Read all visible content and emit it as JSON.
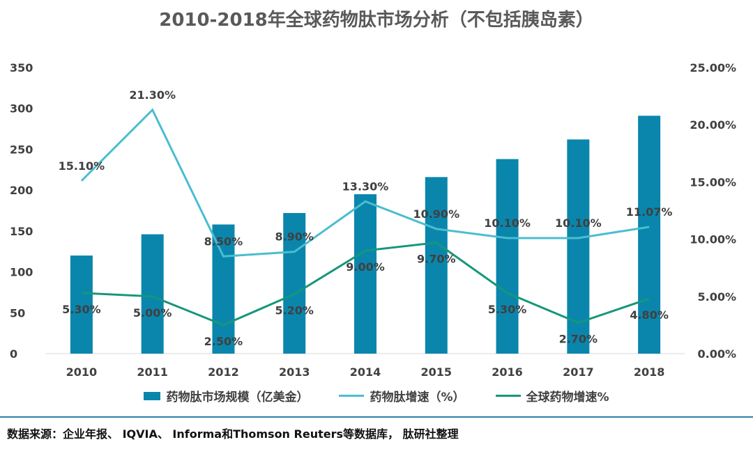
{
  "chart_data": {
    "type": "bar",
    "title": "2010-2018年全球药物肽市场分析（不包括胰岛素）",
    "categories": [
      "2010",
      "2011",
      "2012",
      "2013",
      "2014",
      "2015",
      "2016",
      "2017",
      "2018"
    ],
    "series": [
      {
        "name": "药物肽市场规模（亿美金）",
        "type": "bar",
        "axis": "left",
        "color": "#0a86ad",
        "values": [
          120,
          146,
          158,
          172,
          195,
          216,
          238,
          262,
          291
        ]
      },
      {
        "name": "药物肽增速（%）",
        "type": "line",
        "axis": "right",
        "color": "#4bbdd0",
        "values": [
          15.1,
          21.3,
          8.5,
          8.9,
          13.3,
          10.9,
          10.1,
          10.1,
          11.07
        ],
        "labels": [
          "15.10%",
          "21.30%",
          "8.50%",
          "8.90%",
          "13.30%",
          "10.90%",
          "10.10%",
          "10.10%",
          "11.07%"
        ]
      },
      {
        "name": "全球药物增速%",
        "type": "line",
        "axis": "right",
        "color": "#16967a",
        "values": [
          5.3,
          5.0,
          2.5,
          5.2,
          9.0,
          9.7,
          5.3,
          2.7,
          4.8
        ],
        "labels": [
          "5.30%",
          "5.00%",
          "2.50%",
          "5.20%",
          "9.00%",
          "9.70%",
          "5.30%",
          "2.70%",
          "4.80%"
        ]
      }
    ],
    "y_left": {
      "range": [
        0,
        350
      ],
      "ticks": [
        0,
        50,
        100,
        150,
        200,
        250,
        300,
        350
      ],
      "tick_labels": [
        "0",
        "50",
        "100",
        "150",
        "200",
        "250",
        "300",
        "350"
      ]
    },
    "y_right": {
      "range": [
        0,
        25
      ],
      "ticks": [
        0,
        5,
        10,
        15,
        20,
        25
      ],
      "tick_labels": [
        "0.00%",
        "5.00%",
        "10.00%",
        "15.00%",
        "20.00%",
        "25.00%"
      ]
    },
    "grid": false,
    "legend": "bottom"
  },
  "footer": {
    "source": "数据来源：企业年报、 IQVIA、 Informa和Thomson Reuters等数据库， 肽研社整理"
  }
}
